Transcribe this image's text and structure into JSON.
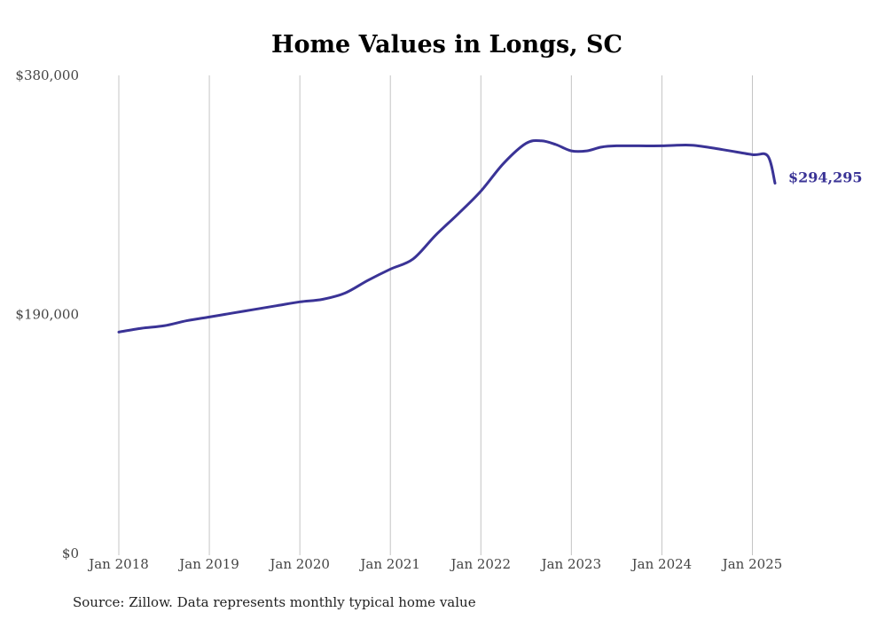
{
  "chart_data": {
    "type": "line",
    "title": "Home Values in Longs, SC",
    "source": "Source: Zillow. Data represents monthly typical home value",
    "ylim": [
      0,
      380000
    ],
    "y_ticks": [
      {
        "value": 0,
        "label": "$0"
      },
      {
        "value": 190000,
        "label": "$190,000"
      },
      {
        "value": 380000,
        "label": "$380,000"
      }
    ],
    "x_ticks": [
      {
        "value": 2018.0,
        "label": "Jan 2018"
      },
      {
        "value": 2019.0,
        "label": "Jan 2019"
      },
      {
        "value": 2020.0,
        "label": "Jan 2020"
      },
      {
        "value": 2021.0,
        "label": "Jan 2021"
      },
      {
        "value": 2022.0,
        "label": "Jan 2022"
      },
      {
        "value": 2023.0,
        "label": "Jan 2023"
      },
      {
        "value": 2024.0,
        "label": "Jan 2024"
      },
      {
        "value": 2025.0,
        "label": "Jan 2025"
      }
    ],
    "xlim": [
      2018.0,
      2025.25
    ],
    "grid": "vertical",
    "line_color": "#3a3396",
    "end_label": "$294,295",
    "series": [
      {
        "x": [
          2018.0,
          2018.25,
          2018.5,
          2018.75,
          2019.0,
          2019.25,
          2019.5,
          2019.75,
          2020.0,
          2020.25,
          2020.5,
          2020.75,
          2021.0,
          2021.25,
          2021.5,
          2021.75,
          2022.0,
          2022.25,
          2022.5,
          2022.67,
          2022.83,
          2023.0,
          2023.17,
          2023.33,
          2023.5,
          2023.75,
          2024.0,
          2024.33,
          2024.67,
          2025.0,
          2025.17,
          2025.25
        ],
        "y": [
          176000,
          179000,
          181000,
          185000,
          188000,
          191000,
          194000,
          197000,
          200000,
          202000,
          207000,
          217000,
          226000,
          234000,
          253000,
          270000,
          288000,
          310000,
          326000,
          328000,
          325000,
          320000,
          320000,
          323000,
          324000,
          324000,
          324000,
          324500,
          321000,
          317000,
          316000,
          294295
        ]
      }
    ]
  }
}
